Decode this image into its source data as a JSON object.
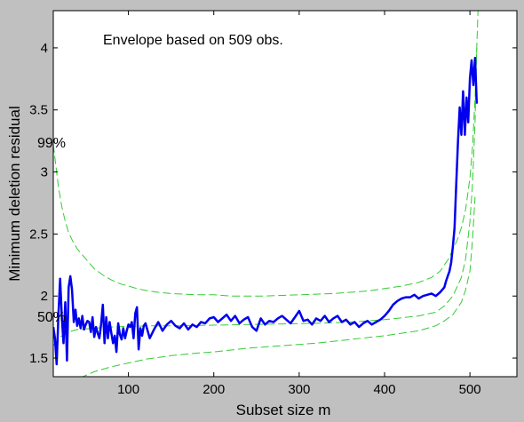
{
  "chart_data": {
    "type": "line",
    "title": "",
    "xlabel": "Subset size m",
    "ylabel": "Minimum deletion residual",
    "xlim": [
      12,
      555
    ],
    "ylim": [
      1.35,
      4.3
    ],
    "xticks": [
      100,
      200,
      300,
      400,
      500
    ],
    "yticks": [
      1.5,
      2,
      2.5,
      3,
      3.5,
      4
    ],
    "xtick_labels": [
      "100",
      "200",
      "300",
      "400",
      "500"
    ],
    "ytick_labels": [
      "1.5",
      "2",
      "2.5",
      "3",
      "3.5",
      "4"
    ],
    "annotation": "Envelope based on 509 obs.",
    "band_labels": [
      {
        "text": "99%",
        "x": 12,
        "y": 3.27
      },
      {
        "text": "50%",
        "x": 12,
        "y": 1.76
      }
    ],
    "colors": {
      "residual": "#0000ee",
      "envelope": "#33cc33",
      "background": "#c0c0c0",
      "plot_area": "#ffffff"
    },
    "series": [
      {
        "style": "solid",
        "x": [
          12,
          14,
          16,
          18,
          20,
          22,
          24,
          26,
          28,
          30,
          32,
          34,
          36,
          38,
          40,
          42,
          44,
          46,
          48,
          50,
          52,
          54,
          56,
          58,
          60,
          62,
          64,
          66,
          68,
          70,
          72,
          74,
          76,
          78,
          80,
          82,
          84,
          86,
          88,
          90,
          92,
          94,
          96,
          98,
          100,
          102,
          104,
          106,
          108,
          110,
          112,
          114,
          116,
          118,
          120,
          125,
          130,
          135,
          140,
          145,
          150,
          155,
          160,
          165,
          170,
          175,
          180,
          185,
          190,
          195,
          200,
          205,
          210,
          215,
          220,
          225,
          230,
          235,
          240,
          245,
          250,
          255,
          260,
          265,
          270,
          275,
          280,
          285,
          290,
          295,
          300,
          305,
          310,
          315,
          320,
          325,
          330,
          335,
          340,
          345,
          350,
          355,
          360,
          365,
          370,
          375,
          380,
          385,
          390,
          395,
          400,
          405,
          410,
          415,
          420,
          425,
          430,
          435,
          440,
          445,
          450,
          455,
          460,
          465,
          470,
          472,
          474,
          476,
          478,
          480,
          482,
          484,
          486,
          488,
          490,
          492,
          494,
          496,
          498,
          500,
          502,
          504,
          506,
          508
        ],
        "y": [
          1.75,
          1.66,
          1.45,
          1.85,
          2.14,
          1.83,
          1.62,
          1.95,
          1.48,
          2.07,
          2.16,
          2.05,
          1.79,
          1.89,
          1.76,
          1.82,
          1.74,
          1.84,
          1.73,
          1.77,
          1.8,
          1.79,
          1.71,
          1.83,
          1.67,
          1.75,
          1.7,
          1.66,
          1.77,
          1.93,
          1.62,
          1.83,
          1.66,
          1.79,
          1.7,
          1.62,
          1.68,
          1.55,
          1.78,
          1.69,
          1.65,
          1.74,
          1.66,
          1.72,
          1.77,
          1.75,
          1.79,
          1.66,
          1.86,
          1.91,
          1.57,
          1.74,
          1.68,
          1.76,
          1.78,
          1.66,
          1.73,
          1.79,
          1.72,
          1.77,
          1.8,
          1.76,
          1.74,
          1.78,
          1.73,
          1.77,
          1.75,
          1.79,
          1.78,
          1.82,
          1.83,
          1.79,
          1.82,
          1.85,
          1.8,
          1.84,
          1.78,
          1.81,
          1.83,
          1.75,
          1.72,
          1.82,
          1.77,
          1.8,
          1.79,
          1.82,
          1.84,
          1.81,
          1.78,
          1.83,
          1.88,
          1.8,
          1.81,
          1.77,
          1.82,
          1.8,
          1.84,
          1.79,
          1.82,
          1.84,
          1.79,
          1.81,
          1.77,
          1.79,
          1.75,
          1.78,
          1.8,
          1.77,
          1.79,
          1.81,
          1.84,
          1.88,
          1.93,
          1.96,
          1.98,
          1.99,
          1.99,
          2.01,
          1.98,
          2.0,
          2.01,
          2.02,
          2.0,
          2.03,
          2.07,
          2.12,
          2.16,
          2.2,
          2.27,
          2.4,
          2.55,
          2.9,
          3.25,
          3.52,
          3.3,
          3.65,
          3.3,
          3.6,
          3.4,
          3.75,
          3.9,
          3.7,
          3.92,
          3.55
        ]
      },
      {
        "style": "dashed",
        "x": [
          12,
          15,
          18,
          22,
          26,
          30,
          35,
          40,
          45,
          50,
          55,
          60,
          70,
          80,
          90,
          100,
          110,
          120,
          135,
          150,
          165,
          180,
          200,
          220,
          240,
          260,
          280,
          300,
          320,
          340,
          360,
          380,
          400,
          420,
          440,
          455,
          465,
          475,
          485,
          490,
          495,
          500,
          503,
          506,
          508,
          510,
          512
        ],
        "y": [
          3.22,
          3.05,
          2.88,
          2.72,
          2.6,
          2.51,
          2.44,
          2.38,
          2.34,
          2.3,
          2.26,
          2.22,
          2.17,
          2.13,
          2.1,
          2.08,
          2.06,
          2.045,
          2.03,
          2.02,
          2.015,
          2.01,
          2.01,
          2.0,
          2.0,
          2.0,
          2.005,
          2.01,
          2.015,
          2.02,
          2.03,
          2.04,
          2.06,
          2.08,
          2.11,
          2.15,
          2.2,
          2.3,
          2.45,
          2.55,
          2.7,
          2.95,
          3.2,
          3.6,
          4.0,
          4.4,
          4.8
        ]
      },
      {
        "style": "dashed",
        "x": [
          12,
          20,
          30,
          40,
          60,
          80,
          100,
          130,
          160,
          200,
          240,
          280,
          320,
          360,
          400,
          440,
          460,
          470,
          480,
          490,
          495,
          500,
          503,
          506,
          508
        ],
        "y": [
          1.6,
          1.67,
          1.71,
          1.73,
          1.74,
          1.75,
          1.755,
          1.76,
          1.76,
          1.765,
          1.77,
          1.775,
          1.78,
          1.79,
          1.81,
          1.84,
          1.87,
          1.92,
          2.0,
          2.15,
          2.3,
          2.6,
          2.9,
          3.4,
          4.0
        ]
      },
      {
        "style": "dashed",
        "x": [
          12,
          20,
          30,
          40,
          50,
          60,
          80,
          100,
          120,
          150,
          180,
          200,
          240,
          280,
          320,
          360,
          400,
          440,
          460,
          470,
          480,
          490,
          495,
          500,
          503,
          506
        ],
        "y": [
          1.05,
          1.2,
          1.28,
          1.33,
          1.36,
          1.39,
          1.43,
          1.46,
          1.49,
          1.52,
          1.54,
          1.55,
          1.58,
          1.6,
          1.62,
          1.65,
          1.68,
          1.72,
          1.76,
          1.8,
          1.85,
          1.95,
          2.05,
          2.2,
          2.45,
          2.8
        ]
      }
    ]
  }
}
